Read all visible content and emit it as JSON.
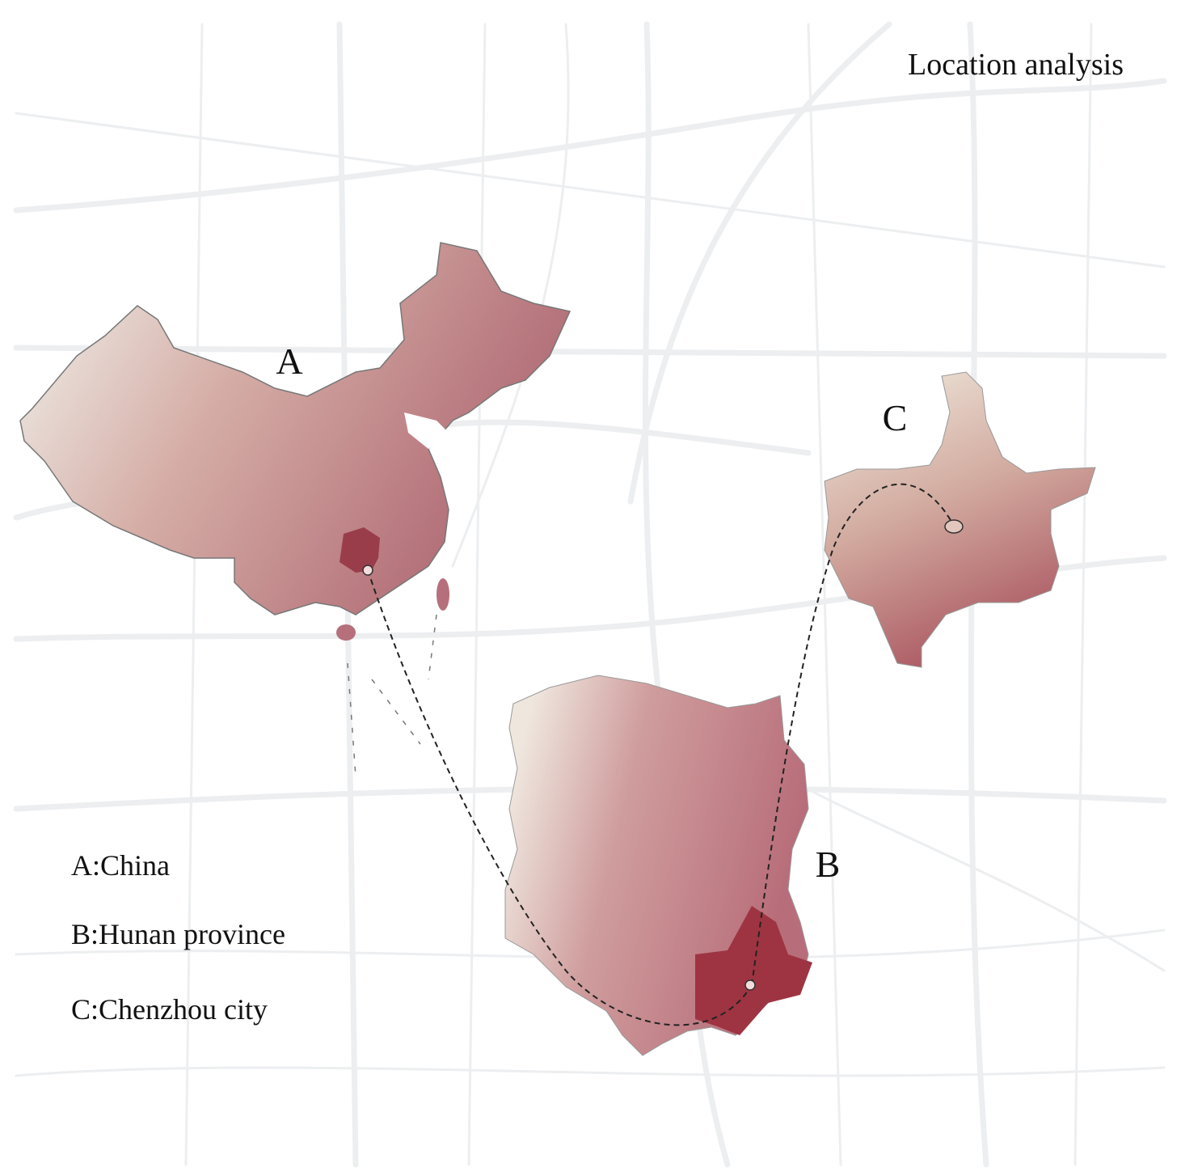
{
  "title": "Location analysis",
  "map_labels": {
    "a": "A",
    "b": "B",
    "c": "C"
  },
  "legend": [
    "A:China",
    "B:Hunan province",
    "C:Chenzhou city"
  ]
}
